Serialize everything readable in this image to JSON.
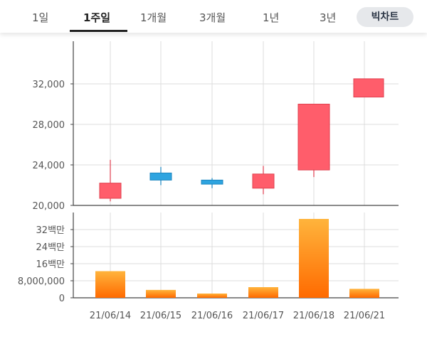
{
  "tabs": [
    {
      "label": "1일"
    },
    {
      "label": "1주일",
      "active": true
    },
    {
      "label": "1개월"
    },
    {
      "label": "3개월"
    },
    {
      "label": "1년"
    },
    {
      "label": "3년"
    }
  ],
  "toggle_button": {
    "label": "빅차트"
  },
  "colors": {
    "up": "#ff5d6b",
    "down": "#2ea4e0",
    "volume_top": "#ffb43c",
    "volume_bottom": "#ff6a00",
    "grid": "#dcdcdc",
    "axis": "#444444",
    "text": "#555555"
  },
  "chart_data": [
    {
      "type": "candlestick",
      "title": "",
      "xlabel": "",
      "ylabel": "",
      "ylim": [
        20000,
        36000
      ],
      "yticks": [
        "32,000",
        "28,000",
        "24,000",
        "20,000"
      ],
      "ytick_values": [
        32000,
        28000,
        24000,
        20000
      ],
      "categories": [
        "21/06/14",
        "21/06/15",
        "21/06/16",
        "21/06/17",
        "21/06/18",
        "21/06/21"
      ],
      "candles": [
        {
          "date": "21/06/14",
          "open": 20700,
          "high": 24500,
          "low": 20400,
          "close": 22200
        },
        {
          "date": "21/06/15",
          "open": 23200,
          "high": 23800,
          "low": 22000,
          "close": 22500
        },
        {
          "date": "21/06/16",
          "open": 22500,
          "high": 22700,
          "low": 21700,
          "close": 22100
        },
        {
          "date": "21/06/17",
          "open": 21700,
          "high": 23900,
          "low": 21100,
          "close": 23100
        },
        {
          "date": "21/06/18",
          "open": 23500,
          "high": 30000,
          "low": 22800,
          "close": 30000
        },
        {
          "date": "21/06/21",
          "open": 30700,
          "high": 32500,
          "low": 30700,
          "close": 32500
        }
      ]
    },
    {
      "type": "bar",
      "title": "",
      "xlabel": "",
      "ylabel": "",
      "ylim": [
        0,
        40000000
      ],
      "yticks": [
        "32백만",
        "24백만",
        "16백만",
        "8,000,000",
        "0"
      ],
      "ytick_values": [
        32000000,
        24000000,
        16000000,
        8000000,
        0
      ],
      "categories": [
        "21/06/14",
        "21/06/15",
        "21/06/16",
        "21/06/17",
        "21/06/18",
        "21/06/21"
      ],
      "values": [
        12500000,
        3700000,
        2000000,
        5000000,
        37000000,
        4200000
      ]
    }
  ]
}
